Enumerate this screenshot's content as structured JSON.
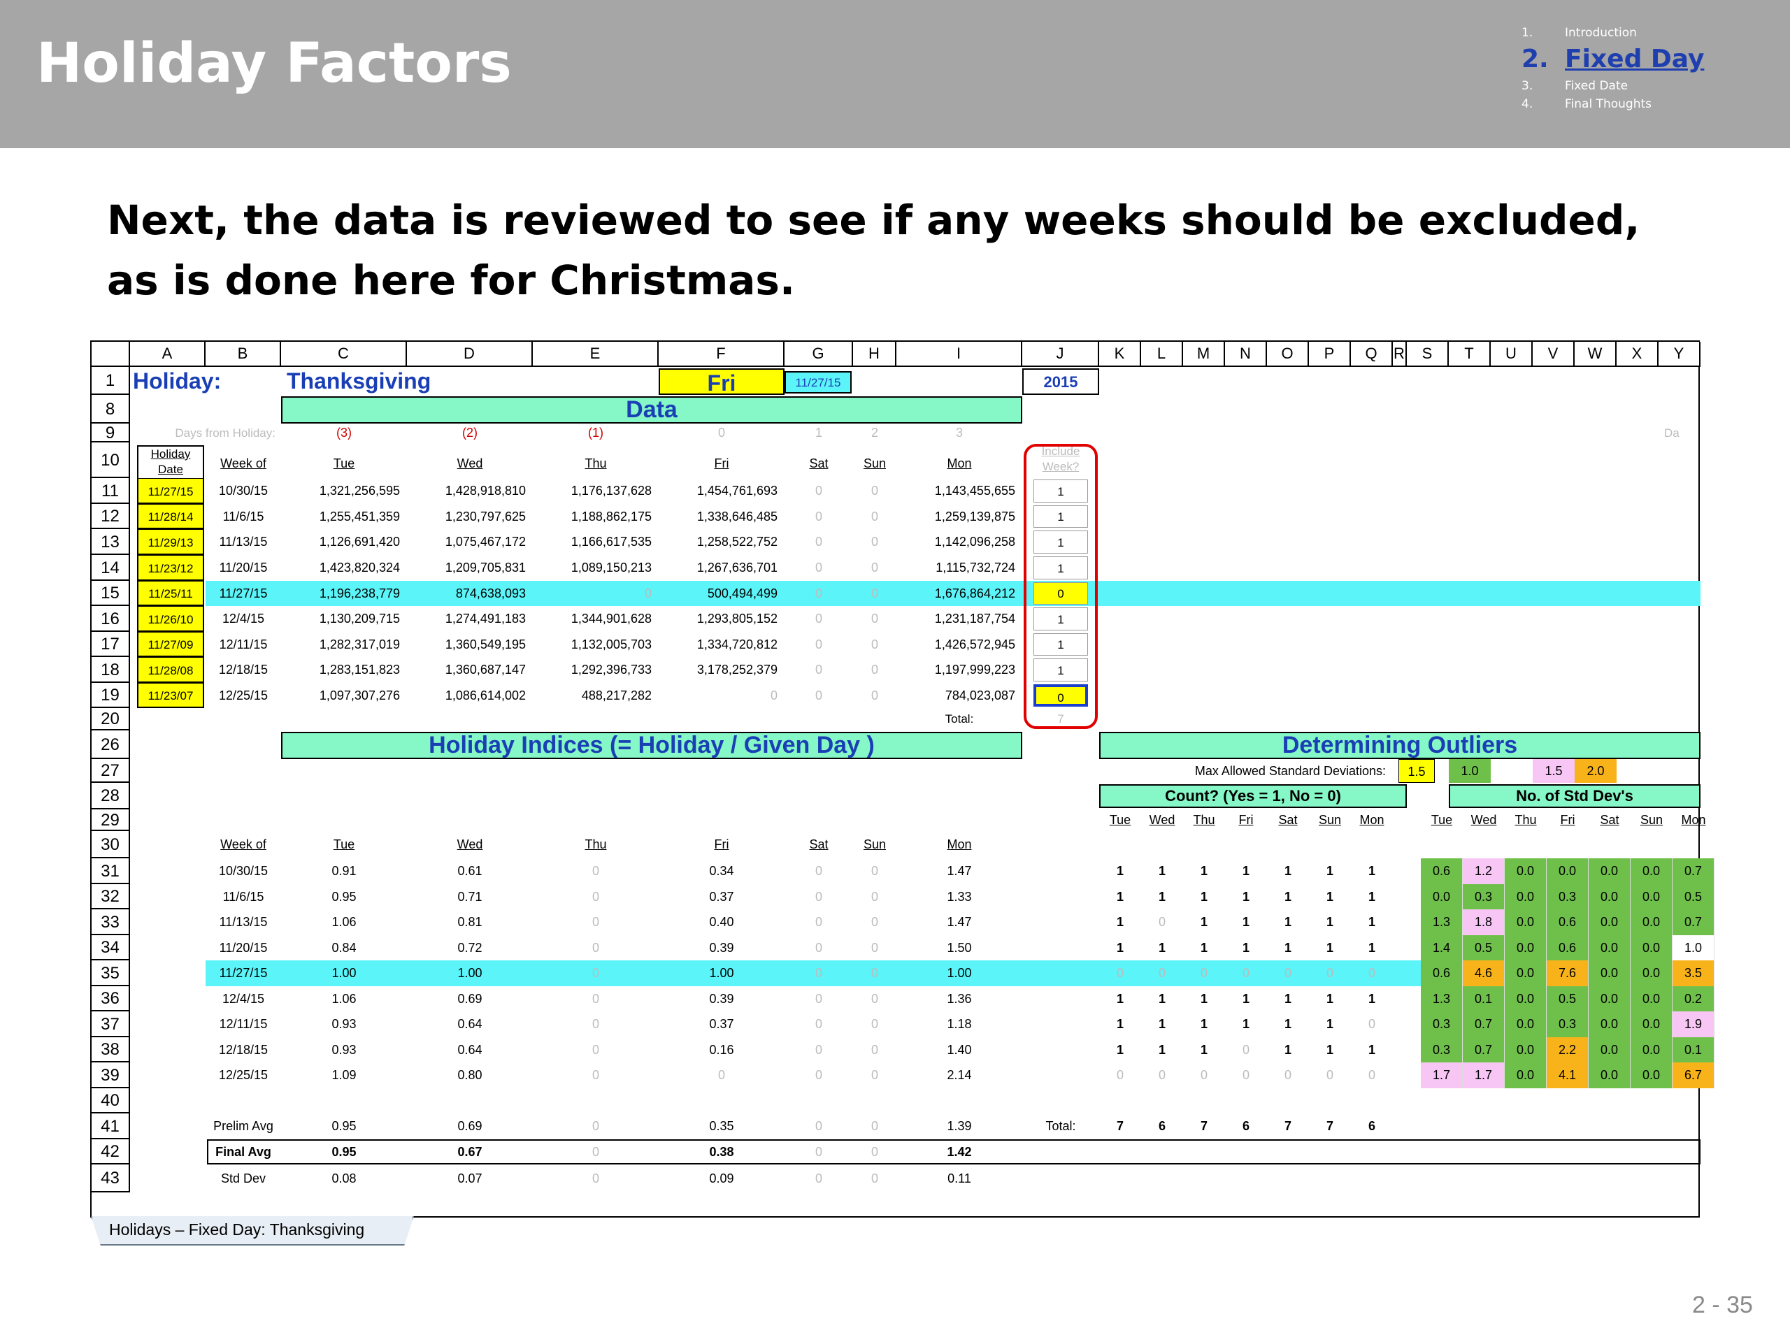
{
  "slide": {
    "title": "Holiday Factors",
    "headline": "Next, the data is reviewed to see if any weeks should be excluded, as is done here for Christmas.",
    "page_number": "2 - 35"
  },
  "agenda": [
    {
      "num": "1.",
      "label": "Introduction"
    },
    {
      "num": "2.",
      "label": "Fixed Day"
    },
    {
      "num": "3.",
      "label": "Fixed Date"
    },
    {
      "num": "4.",
      "label": "Final Thoughts"
    }
  ],
  "sheet": {
    "columns": [
      "A",
      "B",
      "C",
      "D",
      "E",
      "F",
      "G",
      "H",
      "I",
      "J",
      "K",
      "L",
      "M",
      "N",
      "O",
      "P",
      "Q",
      "R",
      "S",
      "T",
      "U",
      "V",
      "W",
      "X",
      "Y"
    ],
    "top": {
      "holiday_label": "Holiday:",
      "holiday_name": "Thanksgiving",
      "day": "Fri",
      "date": "11/27/15",
      "year": "2015"
    },
    "data_band": "Data",
    "days_from_label": "Days from Holiday:",
    "days_from": [
      "(3)",
      "(2)",
      "(1)",
      "0",
      "1",
      "2",
      "3"
    ],
    "trail_label": "Da",
    "data_headers": {
      "holiday_date": "Holiday Date",
      "week_of": "Week of",
      "days": [
        "Tue",
        "Wed",
        "Thu",
        "Fri",
        "Sat",
        "Sun",
        "Mon"
      ],
      "include": "Include Week?"
    },
    "data_rows": [
      {
        "row": "11",
        "hdate": "11/27/15",
        "week": "10/30/15",
        "vals": [
          "1,321,256,595",
          "1,428,918,810",
          "1,176,137,628",
          "1,454,761,693",
          "0",
          "0",
          "1,143,455,655"
        ],
        "inc": "1"
      },
      {
        "row": "12",
        "hdate": "11/28/14",
        "week": "11/6/15",
        "vals": [
          "1,255,451,359",
          "1,230,797,625",
          "1,188,862,175",
          "1,338,646,485",
          "0",
          "0",
          "1,259,139,875"
        ],
        "inc": "1"
      },
      {
        "row": "13",
        "hdate": "11/29/13",
        "week": "11/13/15",
        "vals": [
          "1,126,691,420",
          "1,075,467,172",
          "1,166,617,535",
          "1,258,522,752",
          "0",
          "0",
          "1,142,096,258"
        ],
        "inc": "1"
      },
      {
        "row": "14",
        "hdate": "11/23/12",
        "week": "11/20/15",
        "vals": [
          "1,423,820,324",
          "1,209,705,831",
          "1,089,150,213",
          "1,267,636,701",
          "0",
          "0",
          "1,115,732,724"
        ],
        "inc": "1"
      },
      {
        "row": "15",
        "hdate": "11/25/11",
        "week": "11/27/15",
        "vals": [
          "1,196,238,779",
          "874,638,093",
          "0",
          "500,494,499",
          "0",
          "0",
          "1,676,864,212"
        ],
        "inc": "0"
      },
      {
        "row": "16",
        "hdate": "11/26/10",
        "week": "12/4/15",
        "vals": [
          "1,130,209,715",
          "1,274,491,183",
          "1,344,901,628",
          "1,293,805,152",
          "0",
          "0",
          "1,231,187,754"
        ],
        "inc": "1"
      },
      {
        "row": "17",
        "hdate": "11/27/09",
        "week": "12/11/15",
        "vals": [
          "1,282,317,019",
          "1,360,549,195",
          "1,132,005,703",
          "1,334,720,812",
          "0",
          "0",
          "1,426,572,945"
        ],
        "inc": "1"
      },
      {
        "row": "18",
        "hdate": "11/28/08",
        "week": "12/18/15",
        "vals": [
          "1,283,151,823",
          "1,360,687,147",
          "1,292,396,733",
          "3,178,252,379",
          "0",
          "0",
          "1,197,999,223"
        ],
        "inc": "1"
      },
      {
        "row": "19",
        "hdate": "11/23/07",
        "week": "12/25/15",
        "vals": [
          "1,097,307,276",
          "1,086,614,002",
          "488,217,282",
          "0",
          "0",
          "0",
          "784,023,087"
        ],
        "inc": "0"
      }
    ],
    "total_label": "Total:",
    "include_total": "7",
    "indices_band": "Holiday Indices  (= Holiday / Given Day )",
    "outliers_band": "Determining Outliers",
    "max_std_label": "Max Allowed Standard Deviations:",
    "max_std_vals": [
      "1.5",
      "1.0",
      "1.5",
      "2.0"
    ],
    "count_header": "Count?  (Yes = 1, No = 0)",
    "std_header": "No. of Std Dev's",
    "days_short": [
      "Tue",
      "Wed",
      "Thu",
      "Fri",
      "Sat",
      "Sun",
      "Mon"
    ],
    "index_rows": [
      {
        "row": "31",
        "week": "10/30/15",
        "vals": [
          "0.91",
          "0.61",
          "0",
          "0.34",
          "0",
          "0",
          "1.47"
        ],
        "counts": [
          "1",
          "1",
          "1",
          "1",
          "1",
          "1",
          "1"
        ],
        "std": [
          "0.6",
          "1.2",
          "0.0",
          "0.0",
          "0.0",
          "0.0",
          "0.7"
        ]
      },
      {
        "row": "32",
        "week": "11/6/15",
        "vals": [
          "0.95",
          "0.71",
          "0",
          "0.37",
          "0",
          "0",
          "1.33"
        ],
        "counts": [
          "1",
          "1",
          "1",
          "1",
          "1",
          "1",
          "1"
        ],
        "std": [
          "0.0",
          "0.3",
          "0.0",
          "0.3",
          "0.0",
          "0.0",
          "0.5"
        ]
      },
      {
        "row": "33",
        "week": "11/13/15",
        "vals": [
          "1.06",
          "0.81",
          "0",
          "0.40",
          "0",
          "0",
          "1.47"
        ],
        "counts": [
          "1",
          "0",
          "1",
          "1",
          "1",
          "1",
          "1"
        ],
        "std": [
          "1.3",
          "1.8",
          "0.0",
          "0.6",
          "0.0",
          "0.0",
          "0.7"
        ]
      },
      {
        "row": "34",
        "week": "11/20/15",
        "vals": [
          "0.84",
          "0.72",
          "0",
          "0.39",
          "0",
          "0",
          "1.50"
        ],
        "counts": [
          "1",
          "1",
          "1",
          "1",
          "1",
          "1",
          "1"
        ],
        "std": [
          "1.4",
          "0.5",
          "0.0",
          "0.6",
          "0.0",
          "0.0",
          "1.0"
        ]
      },
      {
        "row": "35",
        "week": "11/27/15",
        "vals": [
          "1.00",
          "1.00",
          "0",
          "1.00",
          "0",
          "0",
          "1.00"
        ],
        "counts": [
          "0",
          "0",
          "0",
          "0",
          "0",
          "0",
          "0"
        ],
        "std": [
          "0.6",
          "4.6",
          "0.0",
          "7.6",
          "0.0",
          "0.0",
          "3.5"
        ]
      },
      {
        "row": "36",
        "week": "12/4/15",
        "vals": [
          "1.06",
          "0.69",
          "0",
          "0.39",
          "0",
          "0",
          "1.36"
        ],
        "counts": [
          "1",
          "1",
          "1",
          "1",
          "1",
          "1",
          "1"
        ],
        "std": [
          "1.3",
          "0.1",
          "0.0",
          "0.5",
          "0.0",
          "0.0",
          "0.2"
        ]
      },
      {
        "row": "37",
        "week": "12/11/15",
        "vals": [
          "0.93",
          "0.64",
          "0",
          "0.37",
          "0",
          "0",
          "1.18"
        ],
        "counts": [
          "1",
          "1",
          "1",
          "1",
          "1",
          "1",
          "0"
        ],
        "std": [
          "0.3",
          "0.7",
          "0.0",
          "0.3",
          "0.0",
          "0.0",
          "1.9"
        ]
      },
      {
        "row": "38",
        "week": "12/18/15",
        "vals": [
          "0.93",
          "0.64",
          "0",
          "0.16",
          "0",
          "0",
          "1.40"
        ],
        "counts": [
          "1",
          "1",
          "1",
          "0",
          "1",
          "1",
          "1"
        ],
        "std": [
          "0.3",
          "0.7",
          "0.0",
          "2.2",
          "0.0",
          "0.0",
          "0.1"
        ]
      },
      {
        "row": "39",
        "week": "12/25/15",
        "vals": [
          "1.09",
          "0.80",
          "0",
          "0",
          "0",
          "0",
          "2.14"
        ],
        "counts": [
          "0",
          "0",
          "0",
          "0",
          "0",
          "0",
          "0"
        ],
        "std": [
          "1.7",
          "1.7",
          "0.0",
          "4.1",
          "0.0",
          "0.0",
          "6.7"
        ]
      }
    ],
    "prelim": {
      "label": "Prelim Avg",
      "vals": [
        "0.95",
        "0.69",
        "0",
        "0.35",
        "0",
        "0",
        "1.39"
      ]
    },
    "count_total_label": "Total:",
    "count_totals": [
      "7",
      "6",
      "7",
      "6",
      "7",
      "7",
      "6"
    ],
    "final": {
      "label": "Final Avg",
      "vals": [
        "0.95",
        "0.67",
        "0",
        "0.38",
        "0",
        "0",
        "1.42"
      ]
    },
    "stddev": {
      "label": "Std Dev",
      "vals": [
        "0.08",
        "0.07",
        "0",
        "0.09",
        "0",
        "0",
        "0.11"
      ]
    },
    "colors": {
      "green": "#6fc04a",
      "pink": "#f7c6f5",
      "orange": "#f9b31a",
      "cyan": "#5bf4f8",
      "yellow": "#ffff00",
      "band": "#86f7c6",
      "band_text": "#1a3fb5",
      "red_outline": "#e00000",
      "blue_outline": "#1a3fcc"
    }
  },
  "sheet_tab": "Holidays – Fixed Day:  Thanksgiving"
}
